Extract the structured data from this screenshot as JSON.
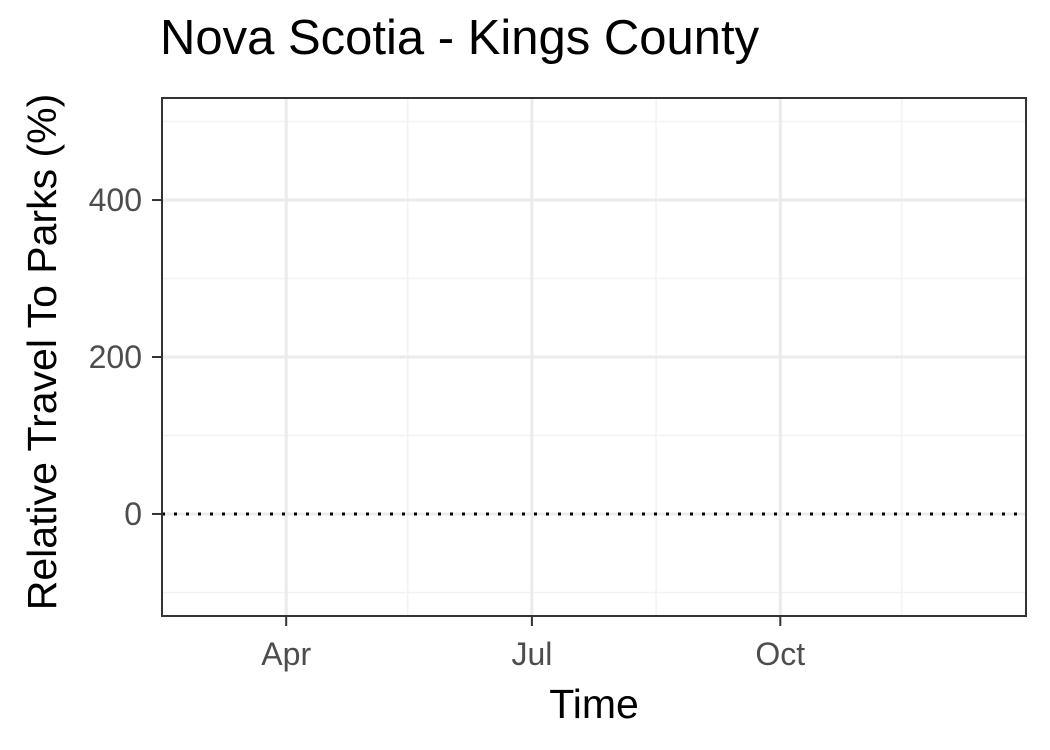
{
  "chart_data": {
    "type": "line",
    "title": "Nova Scotia - Kings County",
    "xlabel": "Time",
    "ylabel": "Relative Travel To Parks (%)",
    "x_axis": {
      "type": "date",
      "range": [
        "2020-02-15",
        "2020-12-31"
      ],
      "major_ticks": [
        {
          "date": "2020-04-01",
          "label": "Apr"
        },
        {
          "date": "2020-07-01",
          "label": "Jul"
        },
        {
          "date": "2020-10-01",
          "label": "Oct"
        }
      ],
      "minor_gridlines": [
        "2020-02-15",
        "2020-05-16",
        "2020-08-16",
        "2020-11-15"
      ]
    },
    "y_axis": {
      "range": [
        -130,
        530
      ],
      "major_ticks": [
        0,
        200,
        400
      ],
      "minor_gridlines": [
        -100,
        100,
        300,
        500
      ]
    },
    "reference_line": {
      "y": 0,
      "style": "dotted",
      "color": "#000000"
    },
    "series": [],
    "grid": true,
    "theme": "bw"
  }
}
